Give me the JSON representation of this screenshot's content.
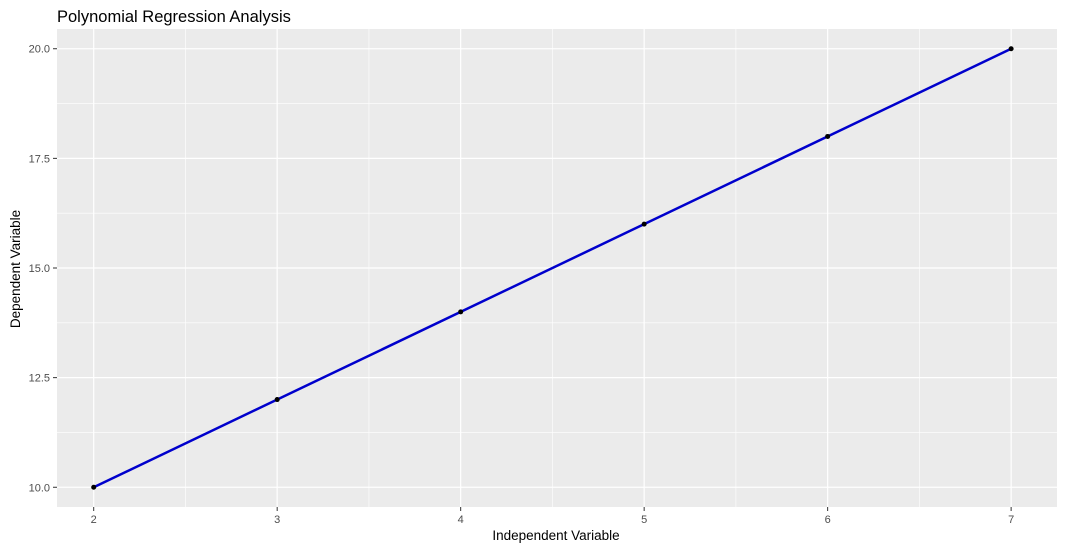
{
  "chart_data": {
    "type": "scatter",
    "title": "Polynomial Regression Analysis",
    "xlabel": "Independent Variable",
    "ylabel": "Dependent Variable",
    "xlim": [
      1.8,
      7.25
    ],
    "ylim": [
      9.55,
      20.45
    ],
    "x_ticks": [
      2,
      3,
      4,
      5,
      6,
      7
    ],
    "x_tick_labels": [
      "2",
      "3",
      "4",
      "5",
      "6",
      "7"
    ],
    "y_ticks": [
      10,
      12.5,
      15,
      17.5,
      20
    ],
    "y_tick_labels": [
      "10.0",
      "12.5",
      "15.0",
      "17.5",
      "20.0"
    ],
    "grid": true,
    "points": {
      "x": [
        2,
        3,
        4,
        5,
        6,
        7
      ],
      "y": [
        10,
        12,
        14,
        16,
        18,
        20
      ],
      "color": "#000000"
    },
    "fit_line": {
      "x": [
        2,
        7
      ],
      "y": [
        10,
        20
      ],
      "color": "#0000CC"
    },
    "panel_background": "#EBEBEB",
    "grid_color": "#FFFFFF"
  }
}
